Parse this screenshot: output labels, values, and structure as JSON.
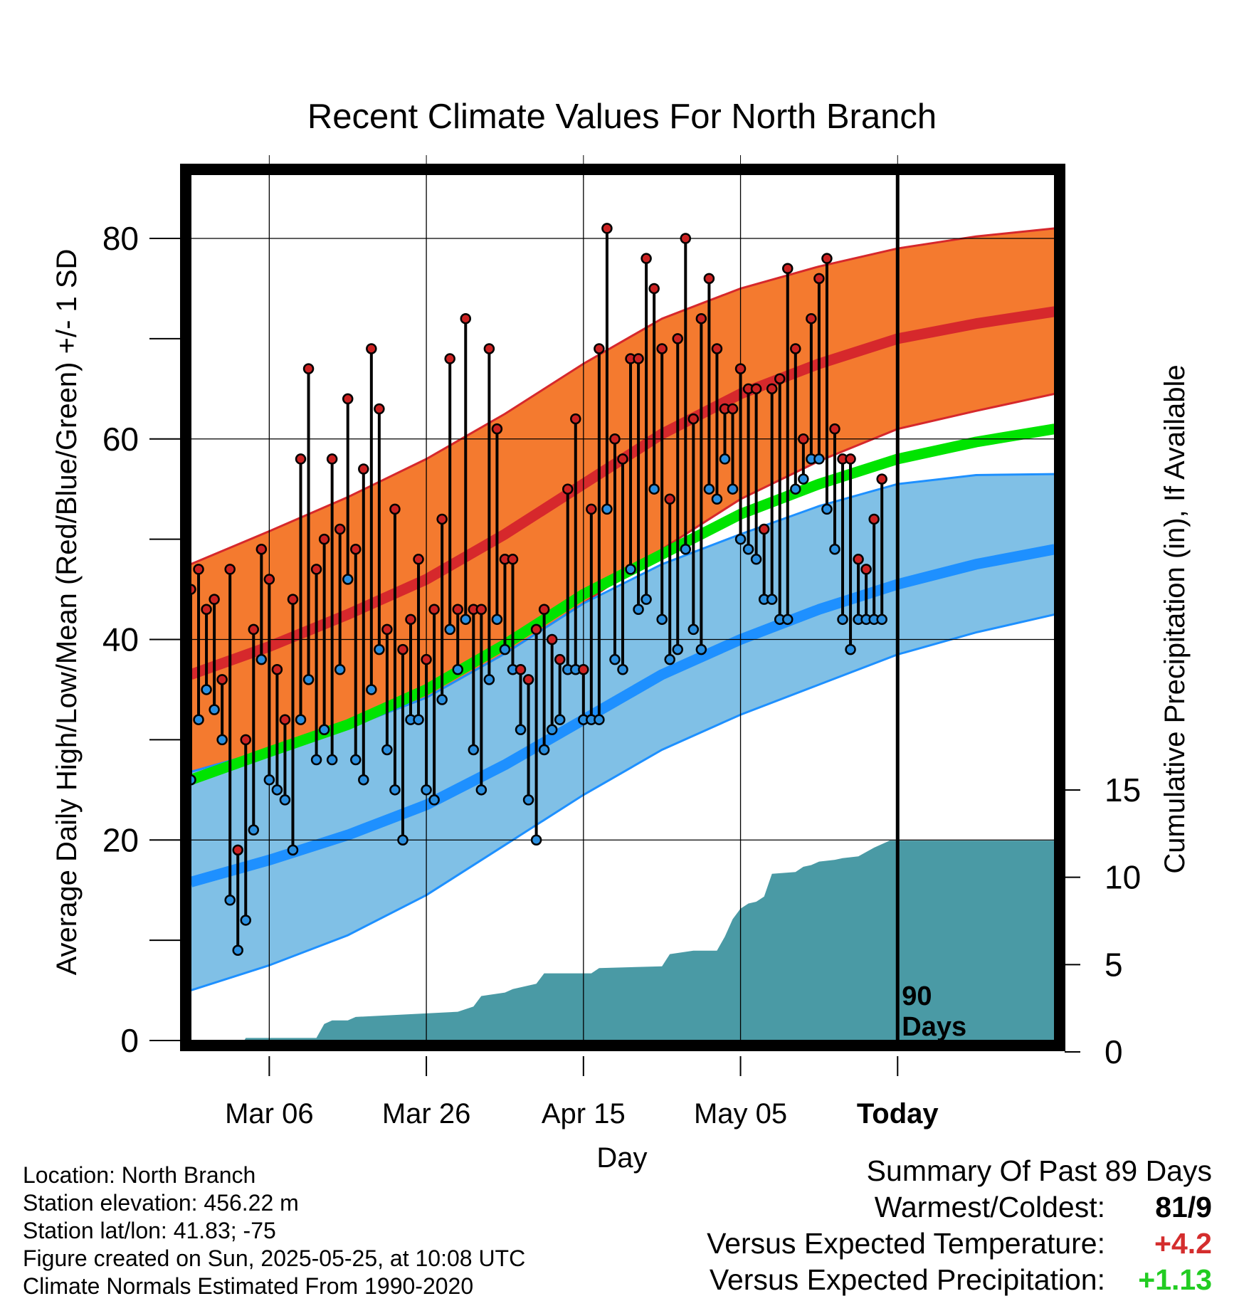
{
  "chart_data": {
    "type": "line",
    "title": "Recent Climate Values For North Branch",
    "xlabel": "Day",
    "ylabel": "Average Daily High/Low/Mean (Red/Blue/Green) +/- 1 SD",
    "y2label": "Cumulative Precipitation (in), If Available",
    "x_start": "2025-02-24",
    "x_end": "2025-06-14",
    "x_ticks": [
      {
        "date": "2025-03-06",
        "label": "Mar 06"
      },
      {
        "date": "2025-03-26",
        "label": "Mar 26"
      },
      {
        "date": "2025-04-15",
        "label": "Apr 15"
      },
      {
        "date": "2025-05-05",
        "label": "May 05"
      },
      {
        "date": "2025-05-25",
        "label": "Today"
      }
    ],
    "ylim": [
      0,
      85
    ],
    "y_ticks": [
      0,
      20,
      40,
      60,
      80
    ],
    "y2lim": [
      0,
      30
    ],
    "y2_ticks": [
      0,
      5,
      10,
      15
    ],
    "today": "2025-05-25",
    "today_label": [
      "90",
      "Days"
    ],
    "grid": true,
    "colors": {
      "high_band": "#f47a2f",
      "high_mean": "#d6282c",
      "band_edge_high": "#d6282c",
      "low_band": "#80c0e6",
      "low_mean": "#1e90ff",
      "band_edge_low": "#1e90ff",
      "mean": "#00e400",
      "precip": "#4a9aa5",
      "high_dot": "#cc2222",
      "low_dot": "#2a8fe0"
    },
    "normals": {
      "dates": [
        "2025-02-24",
        "2025-03-06",
        "2025-03-16",
        "2025-03-26",
        "2025-04-05",
        "2025-04-15",
        "2025-04-25",
        "2025-05-05",
        "2025-05-15",
        "2025-05-25",
        "2025-06-04",
        "2025-06-14"
      ],
      "high_mean": [
        36.5,
        39.3,
        42.5,
        46.0,
        50.5,
        55.5,
        60.5,
        64.5,
        67.5,
        70.0,
        71.5,
        72.7
      ],
      "high_sd_upper": [
        47.5,
        50.8,
        54.2,
        58.0,
        62.5,
        67.5,
        72.0,
        75.0,
        77.2,
        79.0,
        80.2,
        81.0
      ],
      "high_sd_lower": [
        26.8,
        29.0,
        31.2,
        34.2,
        38.6,
        43.6,
        49.0,
        54.0,
        57.8,
        61.0,
        62.8,
        64.5
      ],
      "low_mean": [
        15.8,
        18.0,
        20.5,
        23.5,
        27.5,
        32.0,
        36.5,
        40.0,
        43.0,
        45.5,
        47.5,
        49.0
      ],
      "low_sd_upper": [
        26.8,
        29.0,
        31.2,
        34.2,
        38.6,
        43.6,
        47.5,
        50.5,
        53.3,
        55.5,
        56.4,
        56.5
      ],
      "low_sd_lower": [
        5.0,
        7.5,
        10.5,
        14.5,
        19.5,
        24.5,
        29.0,
        32.5,
        35.5,
        38.5,
        40.7,
        42.5
      ],
      "mean": [
        26.0,
        28.8,
        31.5,
        35.0,
        39.5,
        44.5,
        48.5,
        52.5,
        55.5,
        58.0,
        59.7,
        61.0
      ]
    },
    "daily": {
      "start": "2025-02-24",
      "high": [
        45,
        47,
        43,
        44,
        36,
        47,
        19,
        30,
        41,
        49,
        46,
        37,
        32,
        44,
        58,
        67,
        47,
        50,
        58,
        51,
        64,
        49,
        57,
        69,
        63,
        41,
        53,
        39,
        42,
        48,
        38,
        43,
        52,
        68,
        43,
        72,
        43,
        43,
        69,
        61,
        48,
        48,
        37,
        36,
        41,
        43,
        40,
        38,
        55,
        62,
        37,
        53,
        69,
        81,
        60,
        58,
        68,
        68,
        78,
        75,
        69,
        54,
        70,
        80,
        62,
        72,
        76,
        69,
        63,
        63,
        67,
        65,
        65,
        51,
        65,
        66,
        77,
        69,
        60,
        72,
        76,
        78,
        61,
        58,
        58,
        48,
        47,
        52,
        56
      ],
      "low": [
        26,
        32,
        35,
        33,
        30,
        14,
        9,
        12,
        21,
        38,
        26,
        25,
        24,
        19,
        32,
        36,
        28,
        31,
        28,
        37,
        46,
        28,
        26,
        35,
        39,
        29,
        25,
        20,
        32,
        32,
        25,
        24,
        34,
        41,
        37,
        42,
        29,
        25,
        36,
        42,
        39,
        37,
        31,
        24,
        20,
        29,
        31,
        32,
        37,
        37,
        32,
        32,
        32,
        53,
        38,
        37,
        47,
        43,
        44,
        55,
        42,
        38,
        39,
        49,
        41,
        39,
        55,
        54,
        58,
        55,
        50,
        49,
        48,
        44,
        44,
        42,
        42,
        55,
        56,
        58,
        58,
        53,
        49,
        42,
        39,
        42,
        42,
        42,
        42
      ]
    },
    "precip": {
      "dates": [
        "2025-02-24",
        "2025-03-02",
        "2025-03-03",
        "2025-03-04",
        "2025-03-12",
        "2025-03-13",
        "2025-03-14",
        "2025-03-16",
        "2025-03-17",
        "2025-03-30",
        "2025-04-01",
        "2025-04-02",
        "2025-04-05",
        "2025-04-06",
        "2025-04-09",
        "2025-04-10",
        "2025-04-16",
        "2025-04-17",
        "2025-04-25",
        "2025-04-26",
        "2025-04-29",
        "2025-05-02",
        "2025-05-03",
        "2025-05-04",
        "2025-05-05",
        "2025-05-06",
        "2025-05-07",
        "2025-05-08",
        "2025-05-09",
        "2025-05-12",
        "2025-05-13",
        "2025-05-14",
        "2025-05-15",
        "2025-05-17",
        "2025-05-18",
        "2025-05-20",
        "2025-05-22",
        "2025-05-24",
        "2025-05-25",
        "2025-06-14"
      ],
      "values": [
        0.0,
        0.0,
        0.8,
        0.8,
        0.8,
        1.6,
        1.8,
        1.8,
        2.0,
        2.3,
        2.6,
        3.2,
        3.4,
        3.6,
        3.9,
        4.5,
        4.5,
        4.8,
        4.9,
        5.6,
        5.8,
        5.8,
        6.6,
        7.6,
        8.2,
        8.5,
        8.6,
        8.9,
        10.2,
        10.3,
        10.6,
        10.7,
        10.9,
        11.0,
        11.1,
        11.2,
        11.7,
        12.1,
        12.1,
        12.1
      ]
    }
  },
  "info": {
    "location": "Location: North Branch",
    "elevation": "Station elevation: 456.22 m",
    "latlon": "Station lat/lon: 41.83; -75",
    "created": "Figure created on Sun, 2025-05-25, at 10:08 UTC",
    "normals": "Climate Normals Estimated From 1990-2020"
  },
  "summary": {
    "title": "Summary Of Past 89 Days",
    "warm_cold_label": "Warmest/Coldest:",
    "warm_cold_value": "81/9",
    "temp_label": "Versus Expected Temperature:",
    "temp_value": "+4.2",
    "temp_color": "#d42d2d",
    "precip_label": "Versus Expected Precipitation:",
    "precip_value": "+1.13",
    "precip_color": "#22cc22"
  }
}
